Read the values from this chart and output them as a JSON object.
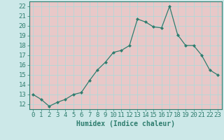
{
  "xlabel": "Humidex (Indice chaleur)",
  "x_values": [
    0,
    1,
    2,
    3,
    4,
    5,
    6,
    7,
    8,
    9,
    10,
    11,
    12,
    13,
    14,
    15,
    16,
    17,
    18,
    19,
    20,
    21,
    22,
    23
  ],
  "y_values": [
    13,
    12.5,
    11.8,
    12.2,
    12.5,
    13,
    13.2,
    14.4,
    15.5,
    16.3,
    17.3,
    17.5,
    18.0,
    20.7,
    20.4,
    19.9,
    19.8,
    22.0,
    19.1,
    18.0,
    18.0,
    17.0,
    15.5,
    15.0
  ],
  "line_color": "#2e7d6e",
  "marker": "D",
  "marker_size": 2.0,
  "background_color": "#cce8e8",
  "grid_bg_color": "#e8c8c8",
  "grid_line_color": "#b0d8d8",
  "ylim": [
    11.5,
    22.5
  ],
  "yticks": [
    12,
    13,
    14,
    15,
    16,
    17,
    18,
    19,
    20,
    21,
    22
  ],
  "xlim": [
    -0.5,
    23.5
  ],
  "xticks": [
    0,
    1,
    2,
    3,
    4,
    5,
    6,
    7,
    8,
    9,
    10,
    11,
    12,
    13,
    14,
    15,
    16,
    17,
    18,
    19,
    20,
    21,
    22,
    23
  ],
  "tick_label_color": "#2e7d6e",
  "xlabel_color": "#2e7d6e",
  "xlabel_fontsize": 7,
  "tick_fontsize": 6.5
}
